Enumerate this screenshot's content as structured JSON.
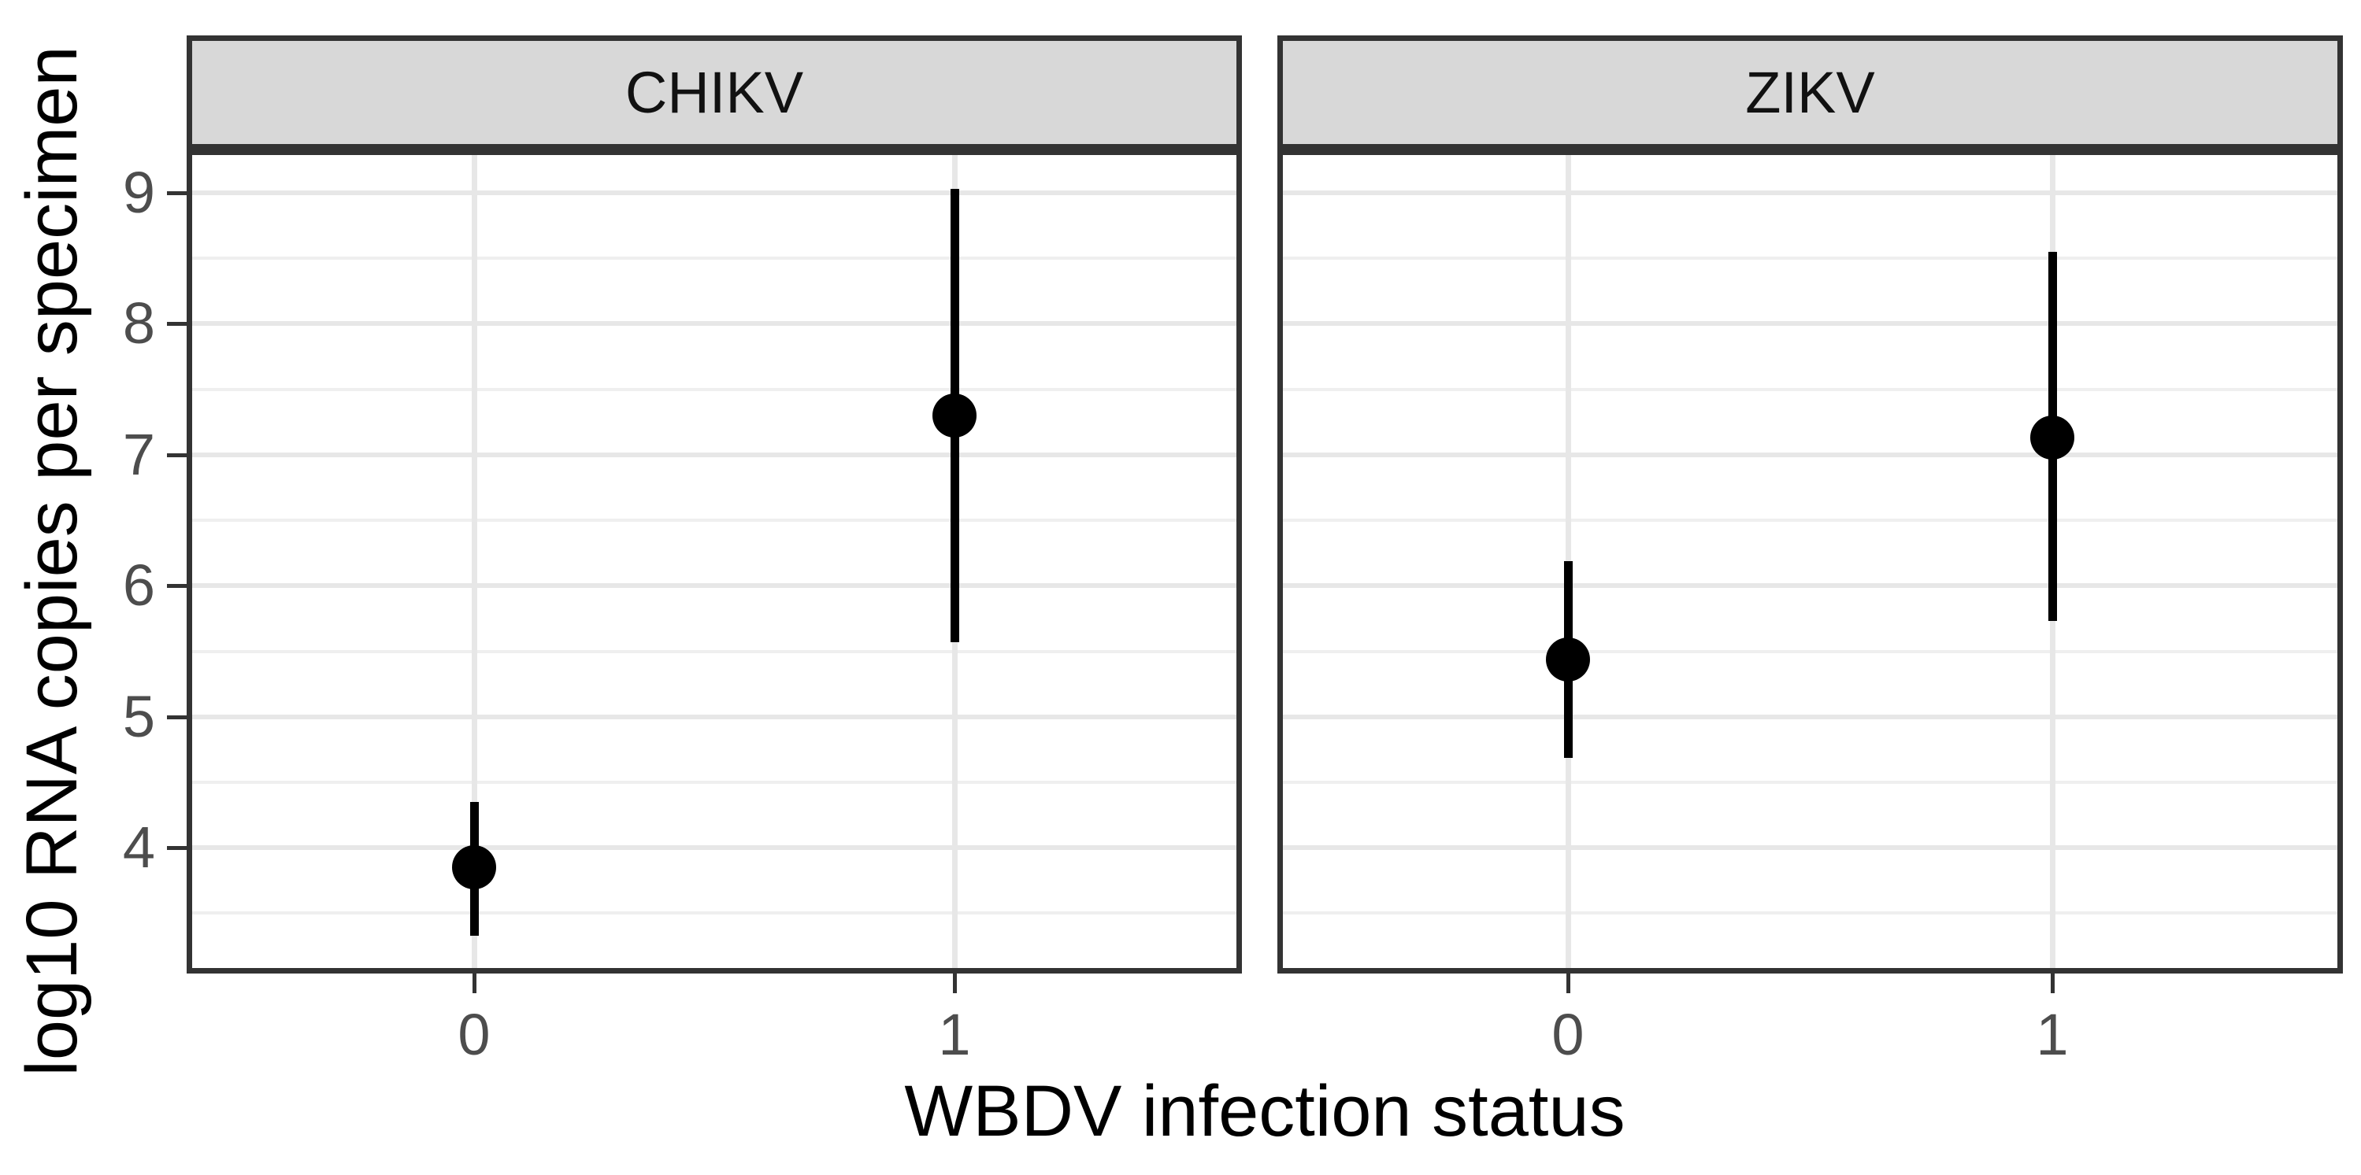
{
  "figure": {
    "background": "#FFFFFF"
  },
  "chart_data": {
    "type": "pointrange",
    "title": "",
    "xlabel": "WBDV infection status",
    "ylabel": "log10 RNA copies per specimen",
    "x_categories": [
      "0",
      "1"
    ],
    "y_ticks": [
      9,
      8,
      7,
      6,
      5,
      4
    ],
    "y_minor_ticks": [
      8.5,
      7.5,
      6.5,
      5.5,
      4.5,
      3.5
    ],
    "y_domain": [
      3.04,
      9.33
    ],
    "grid": "horizontal major+minor light gray lines, vertical light gray line at each category; white panel background",
    "legend": "none",
    "facets": [
      {
        "label": "CHIKV",
        "points": [
          {
            "x": "0",
            "mean": 3.85,
            "lo": 3.33,
            "hi": 4.35
          },
          {
            "x": "1",
            "mean": 7.3,
            "lo": 5.57,
            "hi": 9.03
          }
        ]
      },
      {
        "label": "ZIKV",
        "points": [
          {
            "x": "0",
            "mean": 5.44,
            "lo": 4.69,
            "hi": 6.19
          },
          {
            "x": "1",
            "mean": 7.13,
            "lo": 5.73,
            "hi": 8.55
          }
        ]
      }
    ],
    "colors": {
      "point": "#000000",
      "interval_line": "#000000",
      "panel_border": "#333333",
      "strip_background": "#D8D8D8",
      "strip_text": "#111111",
      "axis_text": "#4D4D4D",
      "axis_title": "#000000",
      "grid_major": "#E7E7E7",
      "grid_minor": "#EFEFEF"
    }
  }
}
